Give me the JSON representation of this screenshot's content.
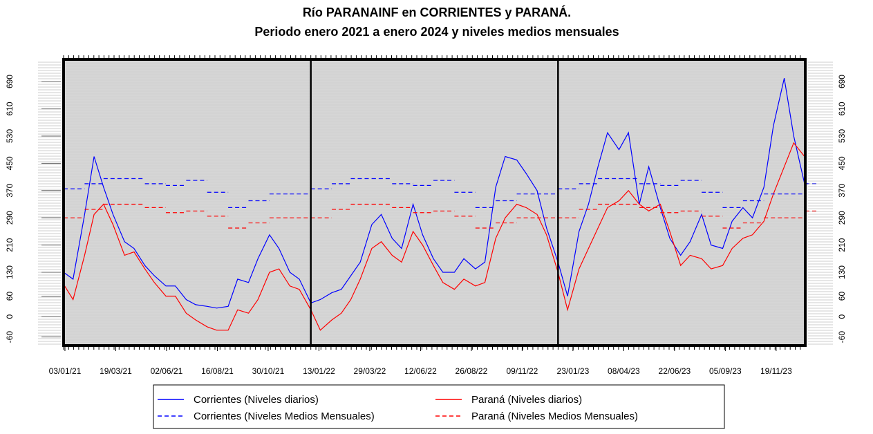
{
  "chart_data": {
    "type": "line",
    "title": "Río PARANAINF en CORRIENTES y PARANÁ.",
    "subtitle": "Periodo enero 2021 a enero 2024 y niveles medios mensuales",
    "xlim": [
      "01/01/21",
      "01/01/24"
    ],
    "xticks": [
      "03/01/21",
      "19/03/21",
      "02/06/21",
      "16/08/21",
      "30/10/21",
      "13/01/22",
      "29/03/22",
      "12/06/22",
      "26/08/22",
      "09/11/22",
      "23/01/23",
      "08/04/23",
      "22/06/23",
      "05/09/23",
      "19/11/23"
    ],
    "ylim": [
      -85,
      755
    ],
    "yticks": [
      -60,
      0,
      60,
      130,
      210,
      290,
      370,
      450,
      530,
      610,
      690
    ],
    "year_lines": [
      "01/01/22",
      "01/01/23"
    ],
    "series": [
      {
        "name": "Corrientes (Niveles diarios)",
        "color": "#0000ff",
        "style": "solid",
        "x": [
          "01/01/21",
          "15/01/21",
          "01/02/21",
          "15/02/21",
          "01/03/21",
          "15/03/21",
          "01/04/21",
          "15/04/21",
          "01/05/21",
          "15/05/21",
          "01/06/21",
          "15/06/21",
          "01/07/21",
          "15/07/21",
          "01/08/21",
          "15/08/21",
          "01/09/21",
          "15/09/21",
          "01/10/21",
          "15/10/21",
          "01/11/21",
          "15/11/21",
          "01/12/21",
          "15/12/21",
          "01/01/22",
          "15/01/22",
          "01/02/22",
          "15/02/22",
          "01/03/22",
          "15/03/22",
          "01/04/22",
          "15/04/22",
          "01/05/22",
          "15/05/22",
          "01/06/22",
          "15/06/22",
          "01/07/22",
          "15/07/22",
          "01/08/22",
          "15/08/22",
          "01/09/22",
          "15/09/22",
          "01/10/22",
          "15/10/22",
          "01/11/22",
          "15/11/22",
          "01/12/22",
          "15/12/22",
          "01/01/23",
          "15/01/23",
          "01/02/23",
          "15/02/23",
          "01/03/23",
          "15/03/23",
          "01/04/23",
          "15/04/23",
          "01/05/23",
          "15/05/23",
          "01/06/23",
          "15/06/23",
          "01/07/23",
          "15/07/23",
          "01/08/23",
          "15/08/23",
          "01/09/23",
          "15/09/23",
          "01/10/23",
          "15/10/23",
          "01/11/23",
          "15/11/23",
          "01/12/23",
          "15/12/23",
          "31/12/23"
        ],
        "values": [
          130,
          110,
          300,
          470,
          380,
          300,
          220,
          200,
          150,
          120,
          90,
          90,
          50,
          35,
          30,
          25,
          30,
          110,
          100,
          170,
          240,
          200,
          130,
          110,
          40,
          50,
          70,
          80,
          120,
          160,
          270,
          300,
          230,
          200,
          330,
          240,
          170,
          130,
          130,
          170,
          140,
          160,
          380,
          470,
          460,
          420,
          370,
          260,
          160,
          60,
          250,
          330,
          440,
          540,
          490,
          540,
          330,
          440,
          320,
          230,
          180,
          220,
          300,
          210,
          200,
          280,
          320,
          290,
          380,
          560,
          700,
          530,
          390
        ]
      },
      {
        "name": "Paraná (Niveles diarios)",
        "color": "#ff0000",
        "style": "solid",
        "x": [
          "01/01/21",
          "15/01/21",
          "01/02/21",
          "15/02/21",
          "01/03/21",
          "15/03/21",
          "01/04/21",
          "15/04/21",
          "01/05/21",
          "15/05/21",
          "01/06/21",
          "15/06/21",
          "01/07/21",
          "15/07/21",
          "01/08/21",
          "15/08/21",
          "01/09/21",
          "15/09/21",
          "01/10/21",
          "15/10/21",
          "01/11/21",
          "15/11/21",
          "01/12/21",
          "15/12/21",
          "01/01/22",
          "15/01/22",
          "01/02/22",
          "15/02/22",
          "01/03/22",
          "15/03/22",
          "01/04/22",
          "15/04/22",
          "01/05/22",
          "15/05/22",
          "01/06/22",
          "15/06/22",
          "01/07/22",
          "15/07/22",
          "01/08/22",
          "15/08/22",
          "01/09/22",
          "15/09/22",
          "01/10/22",
          "15/10/22",
          "01/11/22",
          "15/11/22",
          "01/12/22",
          "15/12/22",
          "01/01/23",
          "15/01/23",
          "01/02/23",
          "15/02/23",
          "01/03/23",
          "15/03/23",
          "01/04/23",
          "15/04/23",
          "01/05/23",
          "15/05/23",
          "01/06/23",
          "15/06/23",
          "01/07/23",
          "15/07/23",
          "01/08/23",
          "15/08/23",
          "01/09/23",
          "15/09/23",
          "01/10/23",
          "15/10/23",
          "01/11/23",
          "15/11/23",
          "01/12/23",
          "15/12/23",
          "31/12/23"
        ],
        "values": [
          95,
          50,
          180,
          300,
          330,
          270,
          180,
          190,
          140,
          100,
          60,
          60,
          10,
          -10,
          -30,
          -40,
          -40,
          20,
          10,
          50,
          130,
          140,
          90,
          80,
          20,
          -40,
          -10,
          10,
          50,
          110,
          200,
          220,
          180,
          160,
          250,
          210,
          150,
          100,
          80,
          110,
          90,
          100,
          230,
          290,
          330,
          320,
          300,
          240,
          130,
          20,
          140,
          200,
          260,
          320,
          340,
          370,
          330,
          310,
          330,
          250,
          150,
          180,
          170,
          140,
          150,
          200,
          230,
          240,
          280,
          360,
          440,
          510,
          470
        ]
      },
      {
        "name": "Corrientes (Niveles Medios Mensuales)",
        "color": "#0000ff",
        "style": "dashed",
        "x": [
          "01/01/21",
          "01/02/21",
          "01/03/21",
          "01/04/21",
          "01/05/21",
          "01/06/21",
          "01/07/21",
          "01/08/21",
          "01/09/21",
          "01/10/21",
          "01/11/21",
          "01/12/21",
          "01/01/22",
          "01/02/22",
          "01/03/22",
          "01/04/22",
          "01/05/22",
          "01/06/22",
          "01/07/22",
          "01/08/22",
          "01/09/22",
          "01/10/22",
          "01/11/22",
          "01/12/22",
          "01/01/23",
          "01/02/23",
          "01/03/23",
          "01/04/23",
          "01/05/23",
          "01/06/23",
          "01/07/23",
          "01/08/23",
          "01/09/23",
          "01/10/23",
          "01/11/23",
          "01/12/23",
          "01/01/24"
        ],
        "values": [
          375,
          390,
          405,
          405,
          390,
          385,
          400,
          365,
          320,
          340,
          360,
          360,
          375,
          390,
          405,
          405,
          390,
          385,
          400,
          365,
          320,
          340,
          360,
          360,
          375,
          390,
          405,
          405,
          390,
          385,
          400,
          365,
          320,
          340,
          360,
          360,
          390
        ]
      },
      {
        "name": "Paraná (Niveles Medios Mensuales)",
        "color": "#ff0000",
        "style": "dashed",
        "x": [
          "01/01/21",
          "01/02/21",
          "01/03/21",
          "01/04/21",
          "01/05/21",
          "01/06/21",
          "01/07/21",
          "01/08/21",
          "01/09/21",
          "01/10/21",
          "01/11/21",
          "01/12/21",
          "01/01/22",
          "01/02/22",
          "01/03/22",
          "01/04/22",
          "01/05/22",
          "01/06/22",
          "01/07/22",
          "01/08/22",
          "01/09/22",
          "01/10/22",
          "01/11/22",
          "01/12/22",
          "01/01/23",
          "01/02/23",
          "01/03/23",
          "01/04/23",
          "01/05/23",
          "01/06/23",
          "01/07/23",
          "01/08/23",
          "01/09/23",
          "01/10/23",
          "01/11/23",
          "01/12/23",
          "01/01/24"
        ],
        "values": [
          290,
          315,
          330,
          330,
          320,
          305,
          310,
          295,
          260,
          275,
          290,
          290,
          290,
          315,
          330,
          330,
          320,
          305,
          310,
          295,
          260,
          275,
          290,
          290,
          290,
          315,
          330,
          330,
          320,
          305,
          310,
          295,
          260,
          275,
          290,
          290,
          310
        ]
      }
    ]
  }
}
